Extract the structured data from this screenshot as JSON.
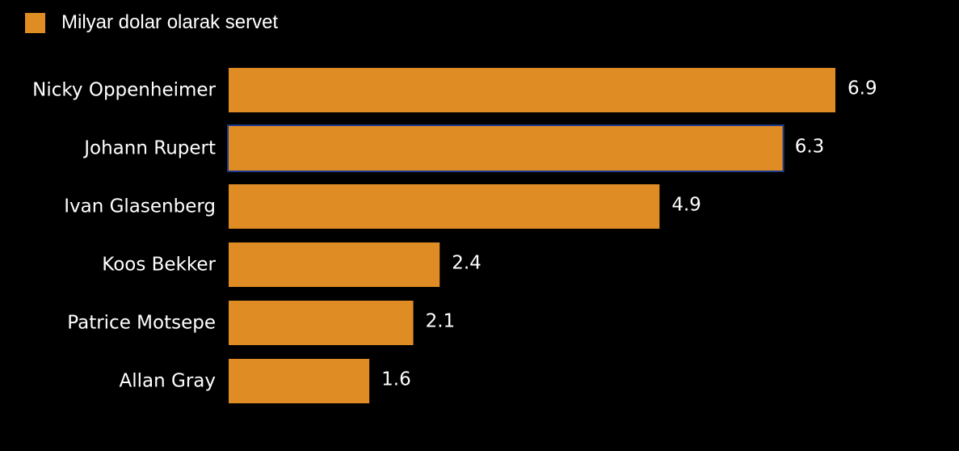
{
  "chart_data": {
    "type": "bar",
    "orientation": "horizontal",
    "legend": "Milyar dolar olarak servet",
    "legend_position": "top-left",
    "categories": [
      "Nicky Oppenheimer",
      "Johann Rupert",
      "Ivan Glasenberg",
      "Koos Bekker",
      "Patrice Motsepe",
      "Allan Gray"
    ],
    "values": [
      6.9,
      6.3,
      4.9,
      2.4,
      2.1,
      1.6
    ],
    "value_labels": [
      "6.9",
      "6.3",
      "4.9",
      "2.4",
      "2.1",
      "1.6"
    ],
    "xlim": [
      0,
      6.9
    ],
    "grid": false,
    "colors": {
      "bar": "#E08C24",
      "background": "#000000",
      "text": "#FFFFFF",
      "highlight_border": "#1F3A8A"
    },
    "highlighted_category": "Johann Rupert"
  }
}
